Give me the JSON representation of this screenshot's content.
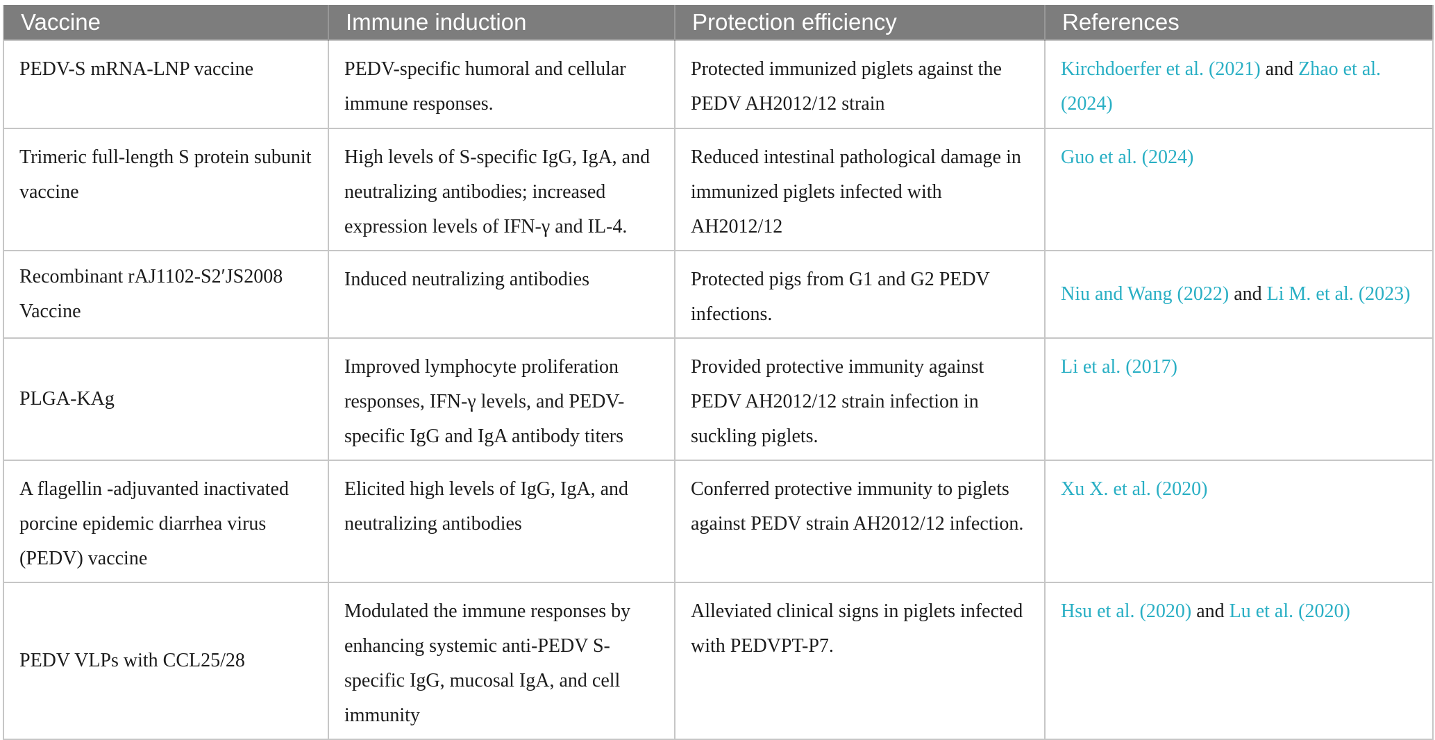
{
  "colors": {
    "header_bg": "#7d7d7d",
    "header_text": "#ffffff",
    "body_text": "#1c1c1c",
    "link": "#29afc4",
    "border": "#c6c6c6"
  },
  "table": {
    "columns": [
      {
        "label": "Vaccine"
      },
      {
        "label": "Immune induction"
      },
      {
        "label": "Protection efficiency"
      },
      {
        "label": "References"
      }
    ],
    "rows": [
      {
        "vaccine": "PEDV-S mRNA-LNP vaccine",
        "immune_induction": "PEDV-specific humoral and cellular immune responses.",
        "protection_efficiency": "Protected immunized piglets against the PEDV AH2012/12 strain",
        "references": [
          {
            "text": "Kirchdoerfer et al. (2021)",
            "is_link": true
          },
          {
            "text": " and ",
            "is_link": false
          },
          {
            "text": "Zhao et al. (2024)",
            "is_link": true
          }
        ]
      },
      {
        "vaccine": "Trimeric full-length S protein subunit vaccine",
        "immune_induction": "High levels of S-specific IgG, IgA, and neutralizing antibodies; increased expression levels of IFN-γ and IL-4.",
        "protection_efficiency": "Reduced intestinal pathological damage in immunized piglets infected with AH2012/12",
        "references": [
          {
            "text": "Guo et al. (2024)",
            "is_link": true
          }
        ]
      },
      {
        "vaccine": "Recombinant rAJ1102-S2′JS2008 Vaccine",
        "immune_induction": "Induced neutralizing antibodies",
        "protection_efficiency": "Protected pigs from G1 and G2 PEDV infections.",
        "references": [
          {
            "text": "Niu and Wang (2022)",
            "is_link": true
          },
          {
            "text": " and ",
            "is_link": false
          },
          {
            "text": "Li M. et al. (2023)",
            "is_link": true
          }
        ]
      },
      {
        "vaccine": "PLGA-KAg",
        "immune_induction": "Improved lymphocyte proliferation responses, IFN-γ levels, and PEDV-specific IgG and IgA antibody titers",
        "protection_efficiency": "Provided protective immunity against PEDV AH2012/12 strain infection in suckling piglets.",
        "references": [
          {
            "text": "Li et al. (2017)",
            "is_link": true
          }
        ]
      },
      {
        "vaccine": "A flagellin -adjuvanted inactivated porcine epidemic diarrhea virus (PEDV) vaccine",
        "immune_induction": "Elicited high levels of IgG, IgA, and neutralizing antibodies",
        "protection_efficiency": "Conferred protective immunity to piglets against PEDV strain AH2012/12 infection.",
        "references": [
          {
            "text": "Xu X. et al. (2020)",
            "is_link": true
          }
        ]
      },
      {
        "vaccine": "PEDV VLPs with CCL25/28",
        "immune_induction": "Modulated the immune responses by enhancing systemic anti-PEDV S-specific IgG, mucosal IgA, and cell immunity",
        "protection_efficiency": "Alleviated clinical signs in piglets infected with PEDVPT-P7.",
        "references": [
          {
            "text": "Hsu et al. (2020)",
            "is_link": true
          },
          {
            "text": " and ",
            "is_link": false
          },
          {
            "text": "Lu et al. (2020)",
            "is_link": true
          }
        ]
      }
    ]
  }
}
